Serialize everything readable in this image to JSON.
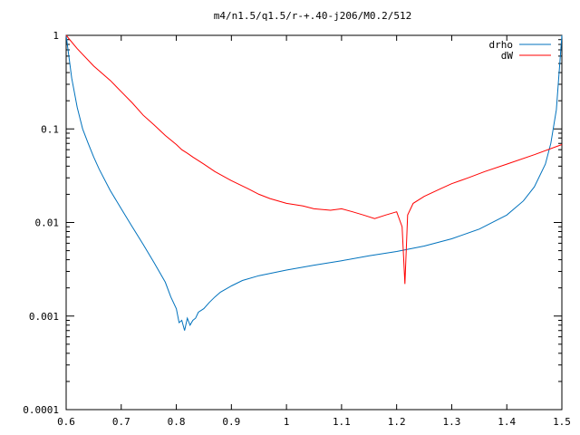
{
  "chart_data": {
    "type": "line",
    "title": "m4/n1.5/q1.5/r-+.40-j206/M0.2/512",
    "xlabel": "",
    "ylabel": "",
    "xlim": [
      0.6,
      1.5
    ],
    "ylim": [
      0.0001,
      1
    ],
    "yscale": "log",
    "grid": false,
    "legend_position": "top-right",
    "x_ticks": [
      {
        "value": 0.6,
        "label": "0.6"
      },
      {
        "value": 0.7,
        "label": "0.7"
      },
      {
        "value": 0.8,
        "label": "0.8"
      },
      {
        "value": 0.9,
        "label": "0.9"
      },
      {
        "value": 1.0,
        "label": "1"
      },
      {
        "value": 1.1,
        "label": "1.1"
      },
      {
        "value": 1.2,
        "label": "1.2"
      },
      {
        "value": 1.3,
        "label": "1.3"
      },
      {
        "value": 1.4,
        "label": "1.4"
      },
      {
        "value": 1.5,
        "label": "1.5"
      }
    ],
    "y_ticks": [
      {
        "value": 1,
        "label": "1"
      },
      {
        "value": 0.1,
        "label": "0.1"
      },
      {
        "value": 0.01,
        "label": "0.01"
      },
      {
        "value": 0.001,
        "label": "0.001"
      },
      {
        "value": 0.0001,
        "label": "0.0001"
      }
    ],
    "series": [
      {
        "name": "drho",
        "color": "#0072bd",
        "x": [
          0.6,
          0.61,
          0.62,
          0.63,
          0.64,
          0.65,
          0.66,
          0.68,
          0.7,
          0.72,
          0.74,
          0.76,
          0.78,
          0.79,
          0.8,
          0.805,
          0.81,
          0.815,
          0.82,
          0.825,
          0.83,
          0.835,
          0.84,
          0.85,
          0.86,
          0.87,
          0.88,
          0.9,
          0.92,
          0.95,
          1.0,
          1.05,
          1.1,
          1.15,
          1.2,
          1.25,
          1.3,
          1.35,
          1.4,
          1.43,
          1.45,
          1.47,
          1.48,
          1.49,
          1.5
        ],
        "y": [
          1.0,
          0.35,
          0.17,
          0.1,
          0.07,
          0.05,
          0.037,
          0.022,
          0.014,
          0.009,
          0.0058,
          0.0037,
          0.0023,
          0.0016,
          0.0012,
          0.00085,
          0.0009,
          0.0007,
          0.00095,
          0.0008,
          0.0009,
          0.00095,
          0.0011,
          0.0012,
          0.0014,
          0.0016,
          0.0018,
          0.0021,
          0.0024,
          0.0027,
          0.0031,
          0.0035,
          0.0039,
          0.0044,
          0.0049,
          0.0056,
          0.0067,
          0.0085,
          0.012,
          0.017,
          0.024,
          0.042,
          0.07,
          0.16,
          1.0
        ]
      },
      {
        "name": "dW",
        "color": "#ff0000",
        "x": [
          0.6,
          0.62,
          0.65,
          0.68,
          0.7,
          0.72,
          0.74,
          0.76,
          0.78,
          0.8,
          0.81,
          0.82,
          0.83,
          0.85,
          0.87,
          0.9,
          0.93,
          0.95,
          0.97,
          1.0,
          1.03,
          1.05,
          1.08,
          1.1,
          1.12,
          1.14,
          1.16,
          1.18,
          1.2,
          1.21,
          1.215,
          1.22,
          1.23,
          1.25,
          1.28,
          1.3,
          1.33,
          1.36,
          1.4,
          1.45,
          1.5
        ],
        "y": [
          1.0,
          0.72,
          0.47,
          0.33,
          0.25,
          0.19,
          0.14,
          0.11,
          0.085,
          0.068,
          0.06,
          0.055,
          0.05,
          0.042,
          0.035,
          0.028,
          0.023,
          0.02,
          0.018,
          0.016,
          0.015,
          0.014,
          0.0135,
          0.014,
          0.013,
          0.012,
          0.011,
          0.012,
          0.013,
          0.009,
          0.0022,
          0.012,
          0.016,
          0.019,
          0.023,
          0.026,
          0.03,
          0.035,
          0.042,
          0.053,
          0.068
        ]
      }
    ]
  }
}
